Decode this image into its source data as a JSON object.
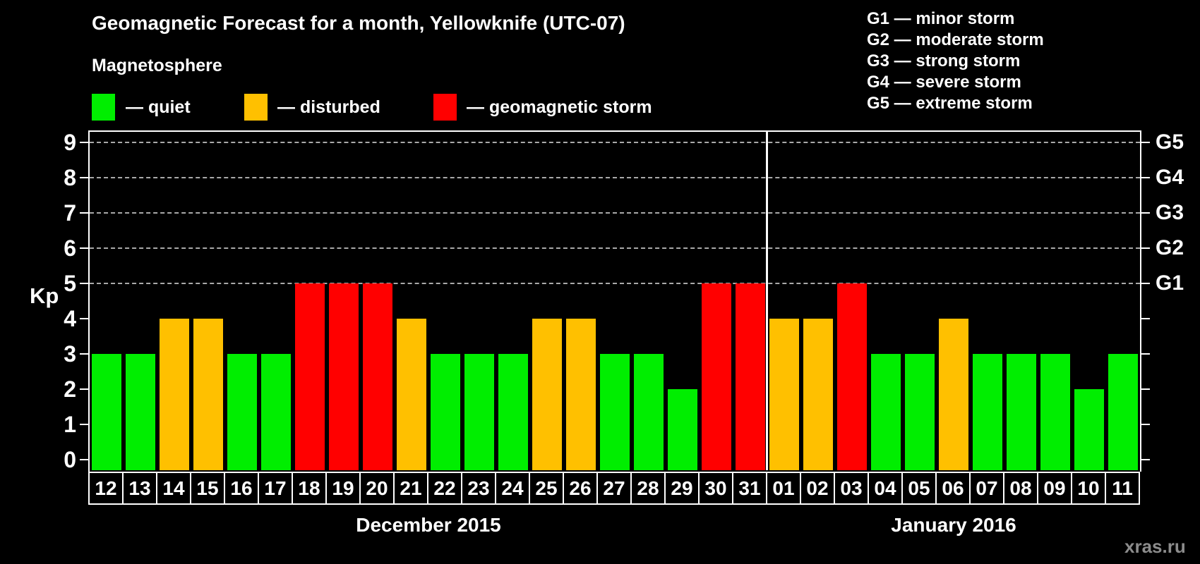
{
  "title": "Geomagnetic Forecast for a month, Yellowknife (UTC-07)",
  "subtitle": "Magnetosphere",
  "legend": {
    "items": [
      {
        "key": "quiet",
        "label": "— quiet",
        "color": "#00ee00"
      },
      {
        "key": "disturbed",
        "label": "— disturbed",
        "color": "#ffc000"
      },
      {
        "key": "storm",
        "label": "— geomagnetic storm",
        "color": "#ff0000"
      }
    ]
  },
  "g_legend": [
    "G1 — minor storm",
    "G2 — moderate storm",
    "G3 — strong storm",
    "G4 — severe storm",
    "G5 — extreme storm"
  ],
  "watermark": "xras.ru",
  "chart_data": {
    "type": "bar",
    "ylabel_left": "Kp",
    "ylim": [
      0,
      9
    ],
    "yticks_left": [
      0,
      1,
      2,
      3,
      4,
      5,
      6,
      7,
      8,
      9
    ],
    "yticks_right": [
      {
        "kp": 5,
        "label": "G1"
      },
      {
        "kp": 6,
        "label": "G2"
      },
      {
        "kp": 7,
        "label": "G3"
      },
      {
        "kp": 8,
        "label": "G4"
      },
      {
        "kp": 9,
        "label": "G5"
      }
    ],
    "gridlines_at": [
      5,
      6,
      7,
      8,
      9
    ],
    "grid": "dashed horizontal lines at storm levels only",
    "legend_position": "top",
    "colors": {
      "quiet": "#00ee00",
      "disturbed": "#ffc000",
      "storm": "#ff0000"
    },
    "months": [
      {
        "label": "December 2015",
        "days": [
          {
            "day": "12",
            "kp": 3,
            "status": "quiet"
          },
          {
            "day": "13",
            "kp": 3,
            "status": "quiet"
          },
          {
            "day": "14",
            "kp": 4,
            "status": "disturbed"
          },
          {
            "day": "15",
            "kp": 4,
            "status": "disturbed"
          },
          {
            "day": "16",
            "kp": 3,
            "status": "quiet"
          },
          {
            "day": "17",
            "kp": 3,
            "status": "quiet"
          },
          {
            "day": "18",
            "kp": 5,
            "status": "storm"
          },
          {
            "day": "19",
            "kp": 5,
            "status": "storm"
          },
          {
            "day": "20",
            "kp": 5,
            "status": "storm"
          },
          {
            "day": "21",
            "kp": 4,
            "status": "disturbed"
          },
          {
            "day": "22",
            "kp": 3,
            "status": "quiet"
          },
          {
            "day": "23",
            "kp": 3,
            "status": "quiet"
          },
          {
            "day": "24",
            "kp": 3,
            "status": "quiet"
          },
          {
            "day": "25",
            "kp": 4,
            "status": "disturbed"
          },
          {
            "day": "26",
            "kp": 4,
            "status": "disturbed"
          },
          {
            "day": "27",
            "kp": 3,
            "status": "quiet"
          },
          {
            "day": "28",
            "kp": 3,
            "status": "quiet"
          },
          {
            "day": "29",
            "kp": 2,
            "status": "quiet"
          },
          {
            "day": "30",
            "kp": 5,
            "status": "storm"
          },
          {
            "day": "31",
            "kp": 5,
            "status": "storm"
          }
        ]
      },
      {
        "label": "January 2016",
        "days": [
          {
            "day": "01",
            "kp": 4,
            "status": "disturbed"
          },
          {
            "day": "02",
            "kp": 4,
            "status": "disturbed"
          },
          {
            "day": "03",
            "kp": 5,
            "status": "storm"
          },
          {
            "day": "04",
            "kp": 3,
            "status": "quiet"
          },
          {
            "day": "05",
            "kp": 3,
            "status": "quiet"
          },
          {
            "day": "06",
            "kp": 4,
            "status": "disturbed"
          },
          {
            "day": "07",
            "kp": 3,
            "status": "quiet"
          },
          {
            "day": "08",
            "kp": 3,
            "status": "quiet"
          },
          {
            "day": "09",
            "kp": 3,
            "status": "quiet"
          },
          {
            "day": "10",
            "kp": 2,
            "status": "quiet"
          },
          {
            "day": "11",
            "kp": 3,
            "status": "quiet"
          }
        ]
      }
    ]
  }
}
